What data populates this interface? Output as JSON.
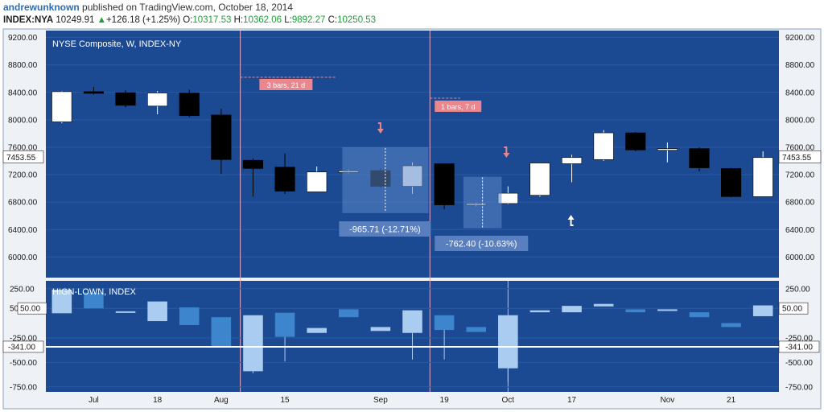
{
  "header": {
    "author": "andrewunknown",
    "published": "published on TradingView.com, October 18, 2014",
    "symbol": "INDEX:NYA",
    "last": "10249.91",
    "change": "+126.18 (+1.25%)",
    "o_label": "O:",
    "o": "10317.53",
    "h_label": "H:",
    "h": "10362.06",
    "l_label": "L:",
    "l": "9892.27",
    "c_label": "C:",
    "c": "10250.53"
  },
  "colors": {
    "pane_bg": "#1b4a93",
    "frame": "#8aa0bf",
    "axis_text": "#1a1a1a",
    "up_candle": "#ffffff",
    "down_candle": "#000000",
    "vline": "#e8a6c0",
    "measure_fill": "#5b86c8",
    "measure_label": "#5a7fbf",
    "bars_label": "#e9868e",
    "arrow_down": "#e9868e",
    "arrow_up": "#ffffff",
    "hl_line": "#ffffff",
    "osc_light": "#aaccf0",
    "osc_dark": "#3d85cc"
  },
  "chart_data": [
    {
      "type": "candlestick",
      "title": "NYSE Composite, W, INDEX-NY",
      "ylim": [
        5700,
        9300
      ],
      "y_ticks": [
        "9200.00",
        "8800.00",
        "8400.00",
        "8000.00",
        "7600.00",
        "7200.00",
        "6800.00",
        "6400.00",
        "6000.00"
      ],
      "current_value_label": "7453.55",
      "current_value": 7453.55,
      "grid": true,
      "candles": [
        {
          "o": 7970,
          "h": 8420,
          "l": 7950,
          "c": 8410
        },
        {
          "o": 8410,
          "h": 8480,
          "l": 8370,
          "c": 8385
        },
        {
          "o": 8395,
          "h": 8430,
          "l": 8180,
          "c": 8210
        },
        {
          "o": 8200,
          "h": 8420,
          "l": 8080,
          "c": 8390
        },
        {
          "o": 8390,
          "h": 8440,
          "l": 8040,
          "c": 8060
        },
        {
          "o": 8070,
          "h": 8160,
          "l": 7210,
          "c": 7420
        },
        {
          "o": 7410,
          "h": 7440,
          "l": 6880,
          "c": 7290
        },
        {
          "o": 7310,
          "h": 7510,
          "l": 6920,
          "c": 6960
        },
        {
          "o": 6950,
          "h": 7320,
          "l": 6950,
          "c": 7240
        },
        {
          "o": 7240,
          "h": 7270,
          "l": 7220,
          "c": 7255
        },
        {
          "o": 7260,
          "h": 7290,
          "l": 7010,
          "c": 7030
        },
        {
          "o": 7030,
          "h": 7380,
          "l": 6920,
          "c": 7330
        },
        {
          "o": 7360,
          "h": 7360,
          "l": 6700,
          "c": 6760
        },
        {
          "o": 6770,
          "h": 6790,
          "l": 6740,
          "c": 6780
        },
        {
          "o": 6780,
          "h": 7030,
          "l": 6770,
          "c": 6930
        },
        {
          "o": 6900,
          "h": 7370,
          "l": 6880,
          "c": 7370
        },
        {
          "o": 7360,
          "h": 7490,
          "l": 7090,
          "c": 7450
        },
        {
          "o": 7420,
          "h": 7850,
          "l": 7400,
          "c": 7810
        },
        {
          "o": 7810,
          "h": 7820,
          "l": 7540,
          "c": 7560
        },
        {
          "o": 7560,
          "h": 7670,
          "l": 7380,
          "c": 7580
        },
        {
          "o": 7580,
          "h": 7600,
          "l": 7250,
          "c": 7300
        },
        {
          "o": 7290,
          "h": 7300,
          "l": 6870,
          "c": 6880
        },
        {
          "o": 6880,
          "h": 7540,
          "l": 6880,
          "c": 7450
        }
      ],
      "annotations": {
        "bars1": "3 bars, 21 d",
        "bars2": "1 bars, 7 d",
        "measure1": "-965.71 (-12.71%)",
        "measure2": "-762.40 (-10.63%)"
      }
    },
    {
      "type": "bar",
      "title": "HIGN-LOWN, INDEX",
      "ylim": [
        -800,
        330
      ],
      "y_ticks": [
        "250.00",
        "50.00",
        "-250.00",
        "-500.00",
        "-750.00"
      ],
      "y_tick_values": [
        250,
        50,
        -250,
        -500,
        -750
      ],
      "level_label": "-341.00",
      "level": -341,
      "upper_label": "50.00",
      "bars": [
        {
          "top": 240,
          "bottom": 0,
          "shade": "light"
        },
        {
          "top": 210,
          "bottom": 50,
          "shade": "dark"
        },
        {
          "top": 20,
          "bottom": 10,
          "shade": "light"
        },
        {
          "top": 120,
          "bottom": -80,
          "shade": "light"
        },
        {
          "top": 60,
          "bottom": -120,
          "shade": "dark"
        },
        {
          "top": -40,
          "bottom": -340,
          "shade": "dark"
        },
        {
          "top": -20,
          "bottom": -590,
          "shade": "light"
        },
        {
          "top": 5,
          "bottom": -240,
          "shade": "dark"
        },
        {
          "top": -150,
          "bottom": -200,
          "shade": "light"
        },
        {
          "top": 40,
          "bottom": -40,
          "shade": "dark"
        },
        {
          "top": -140,
          "bottom": -180,
          "shade": "light"
        },
        {
          "top": 30,
          "bottom": -200,
          "shade": "light"
        },
        {
          "top": -20,
          "bottom": -170,
          "shade": "dark"
        },
        {
          "top": -140,
          "bottom": -190,
          "shade": "dark"
        },
        {
          "top": -20,
          "bottom": -560,
          "shade": "light"
        },
        {
          "top": 30,
          "bottom": 10,
          "shade": "light"
        },
        {
          "top": 75,
          "bottom": 10,
          "shade": "light"
        },
        {
          "top": 95,
          "bottom": 70,
          "shade": "light"
        },
        {
          "top": 40,
          "bottom": 10,
          "shade": "dark"
        },
        {
          "top": 40,
          "bottom": 30,
          "shade": "light"
        },
        {
          "top": 10,
          "bottom": -40,
          "shade": "dark"
        },
        {
          "top": -100,
          "bottom": -140,
          "shade": "dark"
        },
        {
          "top": 80,
          "bottom": -30,
          "shade": "light"
        }
      ]
    }
  ],
  "x_axis": {
    "labels": [
      "Jul",
      "18",
      "Aug",
      "15",
      "Sep",
      "19",
      "Oct",
      "17",
      "Nov",
      "21"
    ],
    "label_candle_index": [
      1,
      3,
      5,
      7,
      10,
      12,
      14,
      16,
      19,
      21
    ]
  }
}
